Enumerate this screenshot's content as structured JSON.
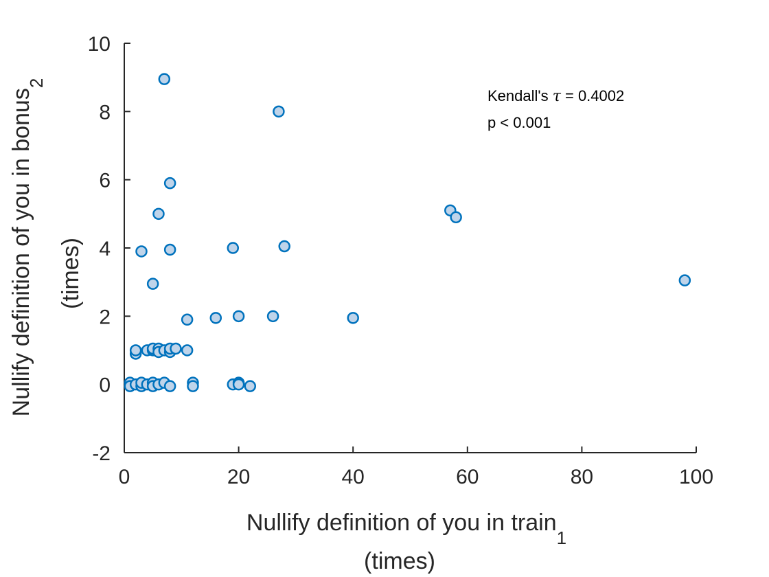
{
  "chart_data": {
    "type": "scatter",
    "title": "",
    "xlabel": "Nullify definition of you in train",
    "xlabel_subscript": "1",
    "xlabel_line2": "(times)",
    "ylabel": "Nullify definition of you in bonus",
    "ylabel_subscript": "2",
    "ylabel_line2": "(times)",
    "xlim": [
      0,
      100
    ],
    "ylim": [
      -2,
      10
    ],
    "xticks": [
      0,
      20,
      40,
      60,
      80,
      100
    ],
    "yticks": [
      -2,
      0,
      2,
      4,
      6,
      8,
      10
    ],
    "grid": false,
    "colors": {
      "marker_edge": "#0072BD",
      "marker_fill": "#BFD4EA",
      "axis": "#262626"
    },
    "annotation": {
      "line1_prefix": "Kendall's ",
      "line1_symbol": "τ",
      "line1_suffix": " = 0.4002",
      "line2": "p < 0.001"
    },
    "series": [
      {
        "points": [
          [
            7,
            8.95
          ],
          [
            27,
            8.0
          ],
          [
            8,
            5.9
          ],
          [
            6,
            5.0
          ],
          [
            57,
            5.1
          ],
          [
            58,
            4.9
          ],
          [
            3,
            3.9
          ],
          [
            8,
            3.95
          ],
          [
            19,
            4.0
          ],
          [
            28,
            4.05
          ],
          [
            98,
            3.05
          ],
          [
            5,
            2.95
          ],
          [
            11,
            1.9
          ],
          [
            16,
            1.95
          ],
          [
            20,
            2.0
          ],
          [
            26,
            2.0
          ],
          [
            40,
            1.95
          ],
          [
            2,
            0.9
          ],
          [
            2,
            1.0
          ],
          [
            4,
            1.0
          ],
          [
            5,
            1.0
          ],
          [
            5,
            1.05
          ],
          [
            6,
            1.05
          ],
          [
            6,
            0.95
          ],
          [
            7,
            1.0
          ],
          [
            8,
            0.95
          ],
          [
            8,
            1.05
          ],
          [
            9,
            1.05
          ],
          [
            11,
            1.0
          ],
          [
            1,
            0.05
          ],
          [
            1,
            -0.05
          ],
          [
            2,
            0.0
          ],
          [
            3,
            -0.05
          ],
          [
            3,
            0.05
          ],
          [
            4,
            0.0
          ],
          [
            5,
            0.05
          ],
          [
            5,
            -0.05
          ],
          [
            6,
            0.0
          ],
          [
            7,
            0.05
          ],
          [
            8,
            -0.05
          ],
          [
            12,
            0.05
          ],
          [
            12,
            -0.05
          ],
          [
            19,
            0.0
          ],
          [
            20,
            0.05
          ],
          [
            20,
            0.0
          ],
          [
            22,
            -0.05
          ]
        ]
      }
    ]
  }
}
